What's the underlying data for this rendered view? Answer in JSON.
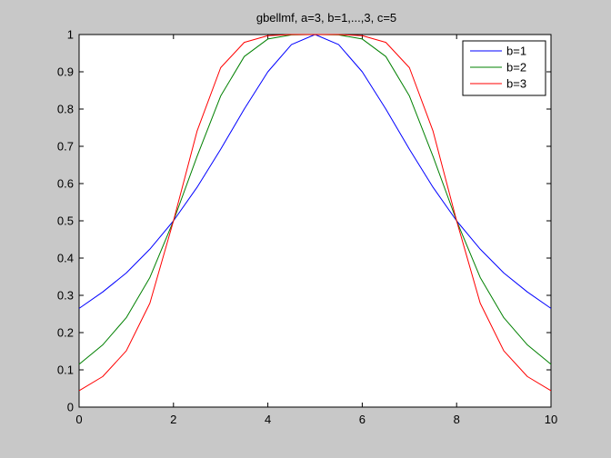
{
  "chart_data": {
    "type": "line",
    "title": "gbellmf, a=3, b=1,...,3, c=5",
    "xlabel": "",
    "ylabel": "",
    "xlim": [
      0,
      10
    ],
    "ylim": [
      0,
      1
    ],
    "x_ticks": [
      "0",
      "2",
      "4",
      "6",
      "8",
      "10"
    ],
    "y_ticks": [
      "0",
      "0.1",
      "0.2",
      "0.3",
      "0.4",
      "0.5",
      "0.6",
      "0.7",
      "0.8",
      "0.9",
      "1"
    ],
    "grid": false,
    "legend_position": "top-right",
    "x": [
      0,
      0.5,
      1,
      1.5,
      2,
      2.5,
      3,
      3.5,
      4,
      4.5,
      5,
      5.5,
      6,
      6.5,
      7,
      7.5,
      8,
      8.5,
      9,
      9.5,
      10
    ],
    "series": [
      {
        "name": "b=1",
        "color": "#0000ff",
        "values": [
          0.265,
          0.309,
          0.36,
          0.424,
          0.5,
          0.59,
          0.692,
          0.8,
          0.9,
          0.973,
          1.0,
          0.973,
          0.9,
          0.8,
          0.692,
          0.59,
          0.5,
          0.424,
          0.36,
          0.309,
          0.265
        ]
      },
      {
        "name": "b=2",
        "color": "#008000",
        "values": [
          0.115,
          0.167,
          0.24,
          0.348,
          0.5,
          0.673,
          0.835,
          0.941,
          0.988,
          0.999,
          1.0,
          0.999,
          0.988,
          0.941,
          0.835,
          0.673,
          0.5,
          0.348,
          0.24,
          0.167,
          0.115
        ]
      },
      {
        "name": "b=3",
        "color": "#ff0000",
        "values": [
          0.044,
          0.082,
          0.151,
          0.279,
          0.5,
          0.741,
          0.911,
          0.979,
          0.997,
          1.0,
          1.0,
          1.0,
          0.997,
          0.979,
          0.911,
          0.741,
          0.5,
          0.279,
          0.151,
          0.082,
          0.044
        ]
      }
    ]
  }
}
